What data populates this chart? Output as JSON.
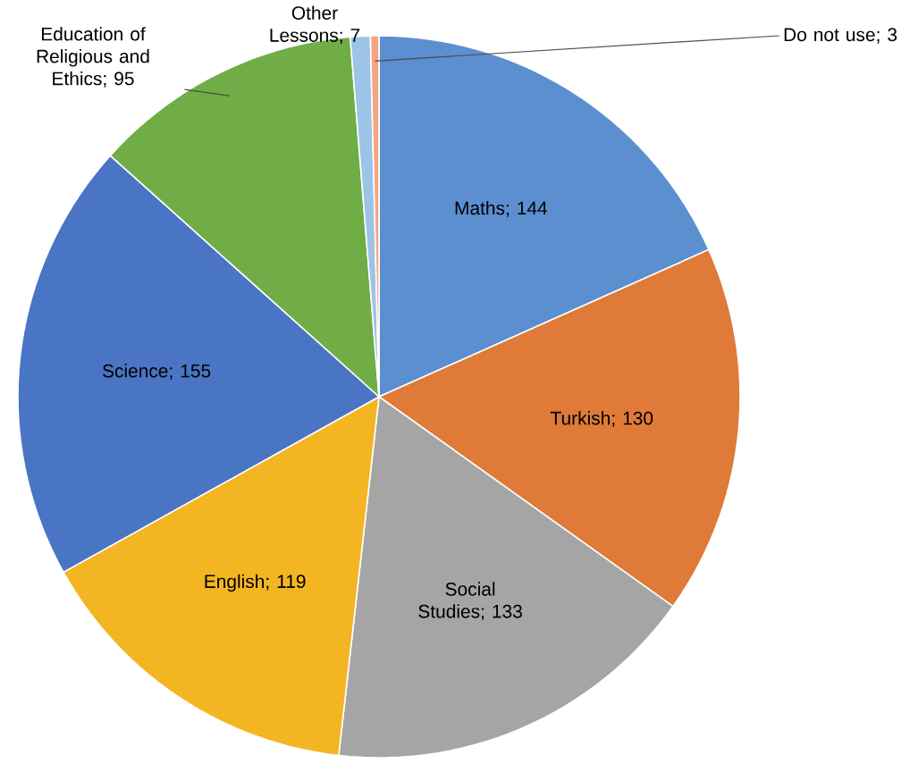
{
  "chart_data": {
    "type": "pie",
    "categories": [
      "Maths",
      "Turkish",
      "Social Studies",
      "English",
      "Science",
      "Education of Religious and Ethics",
      "Other Lessons",
      "Do not use"
    ],
    "values": [
      144,
      130,
      133,
      119,
      155,
      95,
      7,
      3
    ],
    "colors": [
      "#5b8fd0",
      "#df7a38",
      "#a5a5a5",
      "#f4b523",
      "#4a74c4",
      "#70ad47",
      "#9dc3e6",
      "#f4a582"
    ],
    "value_labels": [
      "; 144",
      "; 130",
      "; 133",
      "; 119",
      "; 155",
      "; 95",
      "; 7",
      "; 3"
    ],
    "legend": false
  }
}
